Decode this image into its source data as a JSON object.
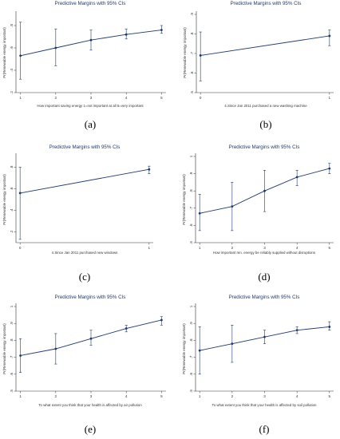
{
  "chart_data": [
    {
      "type": "line",
      "caption": "(a)",
      "title": "Predictive Margins with 95% CIs",
      "xlabel": "How important saving energy 1=not important at all 5=very important",
      "ylabel": "Pr(Renewable energy important)",
      "x": [
        1,
        2,
        3,
        4,
        5
      ],
      "xticks": [
        "1",
        "2",
        "3",
        "4",
        "5"
      ],
      "ylim": [
        0.2,
        0.9
      ],
      "yticks": [
        0.2,
        0.4,
        0.6,
        0.8
      ],
      "ytick_labels": [
        ".2",
        ".4",
        ".6",
        ".8"
      ],
      "y": [
        0.53,
        0.6,
        0.67,
        0.72,
        0.76
      ],
      "ci_low": [
        0.32,
        0.44,
        0.58,
        0.68,
        0.73
      ],
      "ci_high": [
        0.83,
        0.77,
        0.76,
        0.77,
        0.8
      ]
    },
    {
      "type": "line",
      "caption": "(b)",
      "title": "Predictive Margins with 95% CIs",
      "xlabel": "4.Since Jan 2011 purchased a new washing machine",
      "ylabel": "Pr(Renewable energy important)",
      "x": [
        0,
        1
      ],
      "xticks": [
        "0",
        "1"
      ],
      "ylim": [
        0.5,
        0.9
      ],
      "yticks": [
        0.5,
        0.6,
        0.7,
        0.8,
        0.9
      ],
      "ytick_labels": [
        ".5",
        ".6",
        ".7",
        ".8",
        ".9"
      ],
      "y": [
        0.69,
        0.79
      ],
      "ci_low": [
        0.56,
        0.74
      ],
      "ci_high": [
        0.81,
        0.82
      ]
    },
    {
      "type": "line",
      "caption": "(c)",
      "title": "Predictive Margins with 95% CIs",
      "xlabel": "4.Since Jan 2011 purchased new windows",
      "ylabel": "Pr(Renewable energy important)",
      "x": [
        0,
        1
      ],
      "xticks": [
        "0",
        "1"
      ],
      "ylim": [
        0.1,
        0.9
      ],
      "yticks": [
        0.2,
        0.4,
        0.6,
        0.8
      ],
      "ytick_labels": [
        ".2",
        ".4",
        ".6",
        ".8"
      ],
      "y": [
        0.56,
        0.78
      ],
      "ci_low": [
        0.13,
        0.74
      ],
      "ci_high": [
        0.8,
        0.81
      ]
    },
    {
      "type": "line",
      "caption": "(d)",
      "title": "Predictive Margins with 95% CIs",
      "xlabel": "How important ren. energy be reliably supplied without disruptions",
      "ylabel": "Pr(Renewable energy important)",
      "x": [
        1,
        2,
        3,
        4,
        5
      ],
      "xticks": [
        "1",
        "2",
        "3",
        "4",
        "5"
      ],
      "ylim": [
        0.5,
        1.0
      ],
      "yticks": [
        0.5,
        0.6,
        0.7,
        0.8,
        0.9,
        1.0
      ],
      "ytick_labels": [
        ".5",
        ".6",
        ".7",
        ".8",
        ".9",
        "1"
      ],
      "y": [
        0.67,
        0.71,
        0.8,
        0.88,
        0.93
      ],
      "ci_low": [
        0.57,
        0.57,
        0.68,
        0.83,
        0.9
      ],
      "ci_high": [
        0.78,
        0.85,
        0.92,
        0.92,
        0.96
      ]
    },
    {
      "type": "line",
      "caption": "(e)",
      "title": "Predictive Margins with 95% CIs",
      "xlabel": "To what extent you think that your health is affected by air pollution",
      "ylabel": "Pr(Renewable energy important)",
      "x": [
        1,
        2,
        3,
        4,
        5
      ],
      "xticks": [
        "1",
        "2",
        "3",
        "4",
        "5"
      ],
      "ylim": [
        0.5,
        1.0
      ],
      "yticks": [
        0.5,
        0.6,
        0.7,
        0.8,
        0.9,
        1.0
      ],
      "ytick_labels": [
        ".5",
        ".6",
        ".7",
        ".8",
        ".9",
        "1"
      ],
      "y": [
        0.71,
        0.75,
        0.81,
        0.87,
        0.92
      ],
      "ci_low": [
        0.61,
        0.66,
        0.77,
        0.85,
        0.89
      ],
      "ci_high": [
        0.81,
        0.84,
        0.86,
        0.89,
        0.94
      ]
    },
    {
      "type": "line",
      "caption": "(f)",
      "title": "Predictive Margins with 95% CIs",
      "xlabel": "To what extent you think that your health is affected by soil pollution",
      "ylabel": "Pr(Renewable energy important)",
      "x": [
        1,
        2,
        3,
        4,
        5
      ],
      "xticks": [
        "1",
        "2",
        "3",
        "4",
        "5"
      ],
      "ylim": [
        0.5,
        1.0
      ],
      "yticks": [
        0.5,
        0.6,
        0.7,
        0.8,
        0.9,
        1.0
      ],
      "ytick_labels": [
        ".5",
        ".6",
        ".7",
        ".8",
        ".9",
        "1"
      ],
      "y": [
        0.74,
        0.78,
        0.82,
        0.86,
        0.88
      ],
      "ci_low": [
        0.6,
        0.67,
        0.78,
        0.84,
        0.86
      ],
      "ci_high": [
        0.88,
        0.89,
        0.86,
        0.88,
        0.91
      ]
    }
  ],
  "colors": {
    "line": "#1f3a6a",
    "title": "#1f3a6a",
    "axis": "#333333",
    "background": "#ffffff"
  }
}
